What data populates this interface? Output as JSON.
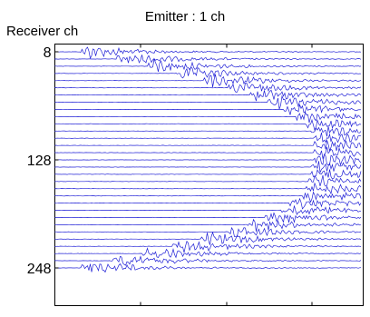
{
  "chart_data": {
    "type": "line",
    "title": "Emitter : 1 ch",
    "ylabel": "Receiver ch",
    "xlabel": "",
    "y_ticks": [
      "8",
      "128",
      "248"
    ],
    "y_tick_values": [
      8,
      128,
      248
    ],
    "ylim": [
      8,
      248
    ],
    "x_ticks": [
      "",
      "",
      "",
      ""
    ],
    "trace_step": 8,
    "trace_count": 31,
    "arrival_fraction": [
      0.1,
      0.22,
      0.32,
      0.41,
      0.5,
      0.58,
      0.65,
      0.71,
      0.76,
      0.8,
      0.83,
      0.85,
      0.86,
      0.86,
      0.86,
      0.86,
      0.85,
      0.85,
      0.84,
      0.83,
      0.81,
      0.78,
      0.75,
      0.7,
      0.64,
      0.57,
      0.49,
      0.4,
      0.3,
      0.2,
      0.1
    ],
    "grid": false,
    "colors": {
      "trace": "#1f1fd6",
      "axis": "#000000"
    }
  }
}
